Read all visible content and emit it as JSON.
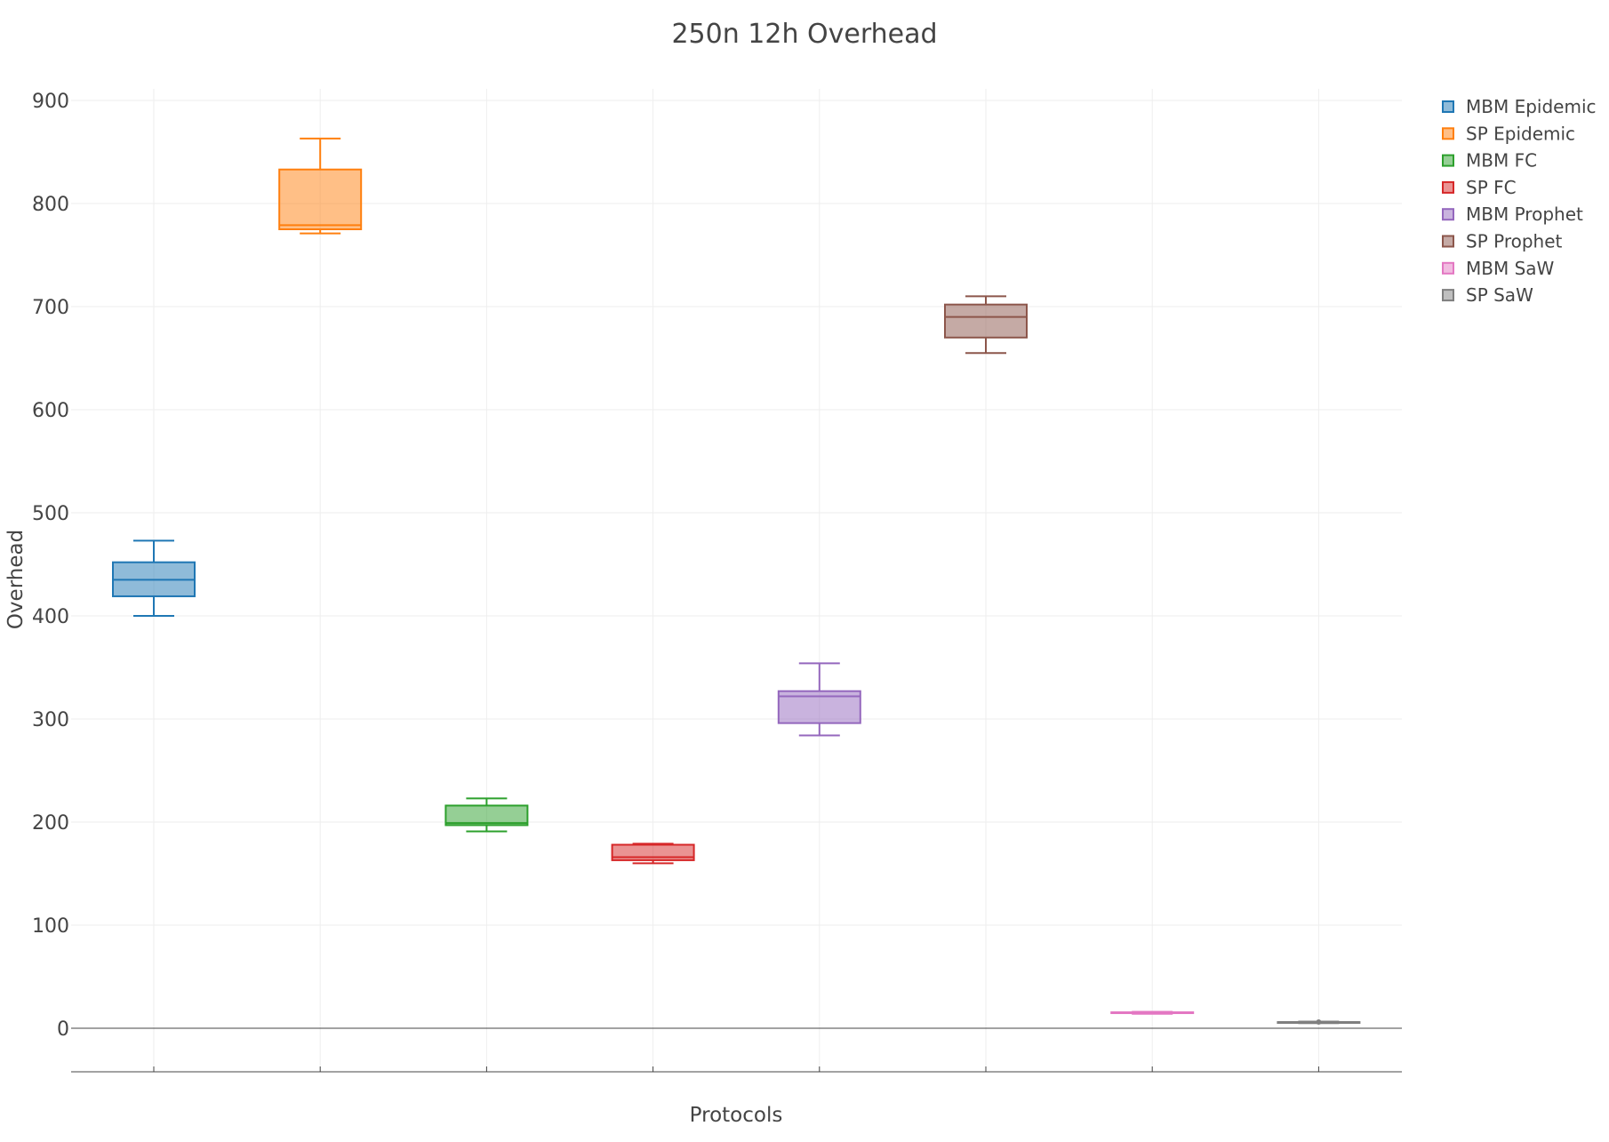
{
  "chart_data": {
    "type": "box",
    "title": "250n 12h Overhead",
    "xlabel": "Protocols",
    "ylabel": "Overhead",
    "ylim": [
      -42,
      910
    ],
    "yticks": [
      0,
      100,
      200,
      300,
      400,
      500,
      600,
      700,
      800,
      900
    ],
    "grid": true,
    "legend_position": "top-right",
    "series": [
      {
        "name": "MBM Epidemic",
        "color": "#1f77b4",
        "min": 400,
        "q1": 419,
        "median": 435,
        "q3": 452,
        "max": 473
      },
      {
        "name": "SP Epidemic",
        "color": "#ff7f0e",
        "min": 771,
        "q1": 775,
        "median": 779,
        "q3": 833,
        "max": 863
      },
      {
        "name": "MBM FC",
        "color": "#2ca02c",
        "min": 191,
        "q1": 197,
        "median": 199,
        "q3": 216,
        "max": 223
      },
      {
        "name": "SP FC",
        "color": "#d62728",
        "min": 160,
        "q1": 163,
        "median": 166,
        "q3": 178,
        "max": 179
      },
      {
        "name": "MBM Prophet",
        "color": "#9467bd",
        "min": 284,
        "q1": 296,
        "median": 322,
        "q3": 327,
        "max": 354
      },
      {
        "name": "SP Prophet",
        "color": "#8c564b",
        "min": 655,
        "q1": 670,
        "median": 690,
        "q3": 702,
        "max": 710
      },
      {
        "name": "MBM SaW",
        "color": "#e377c2",
        "min": 14,
        "q1": 15,
        "median": 15,
        "q3": 15.5,
        "max": 16
      },
      {
        "name": "SP SaW",
        "color": "#7f7f7f",
        "min": 5,
        "q1": 5.5,
        "median": 6,
        "q3": 6,
        "max": 6.5
      }
    ]
  }
}
